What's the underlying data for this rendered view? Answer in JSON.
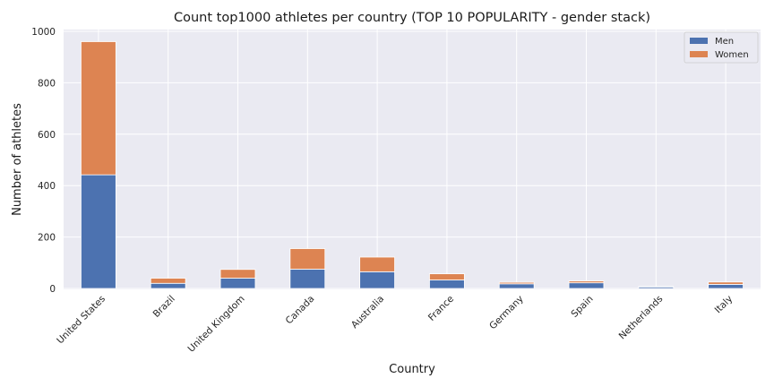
{
  "chart_data": {
    "type": "bar",
    "stacked": true,
    "title": "Count top1000 athletes per country (TOP 10 POPULARITY - gender stack)",
    "xlabel": "Country",
    "ylabel": "Number of athletes",
    "categories": [
      "United States",
      "Brazil",
      "United Kingdom",
      "Canada",
      "Australia",
      "France",
      "Germany",
      "Spain",
      "Netherlands",
      "Italy"
    ],
    "series": [
      {
        "name": "Men",
        "color": "#4c72b0",
        "values": [
          442,
          20,
          40,
          75,
          65,
          33,
          18,
          22,
          6,
          16
        ]
      },
      {
        "name": "Women",
        "color": "#dd8452",
        "values": [
          518,
          20,
          34,
          80,
          57,
          24,
          6,
          7,
          2,
          9
        ]
      }
    ],
    "ylim": [
      0,
      1000
    ],
    "yticks": [
      "0",
      "200",
      "400",
      "600",
      "800",
      "1000"
    ],
    "grid": true,
    "legend": "top-right"
  }
}
